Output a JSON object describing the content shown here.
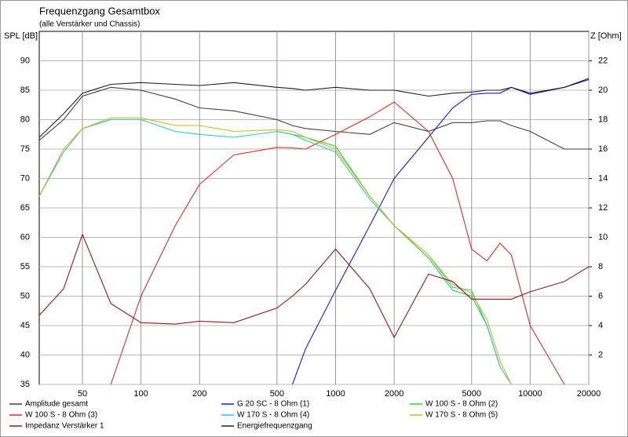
{
  "chart_data": {
    "type": "line",
    "title": "Frequenzgang Gesamtbox",
    "subtitle": "(alle Verstärker und Chassis)",
    "y_label": "SPL [dB]",
    "y2_label": "Z [Ohm]",
    "log_x": true,
    "grid": true,
    "legend": "bottom",
    "x": [
      30,
      40,
      50,
      70,
      100,
      150,
      200,
      300,
      500,
      600,
      700,
      1000,
      1500,
      2000,
      3000,
      4000,
      5000,
      6000,
      7000,
      8000,
      10000,
      15000,
      20000
    ],
    "xlim": [
      30,
      20000
    ],
    "xticks": [
      50,
      100,
      200,
      500,
      1000,
      2000,
      5000,
      10000,
      20000
    ],
    "ylim": [
      35,
      95
    ],
    "yticks": [
      35,
      40,
      45,
      50,
      55,
      60,
      65,
      70,
      75,
      80,
      85,
      90
    ],
    "y2lim": [
      0,
      24
    ],
    "y2ticks": [
      2,
      4,
      6,
      8,
      10,
      12,
      14,
      16,
      18,
      20,
      22
    ],
    "series": [
      {
        "name": "Amplitude gesamt",
        "color": "#404040",
        "values": [
          76.5,
          80,
          84,
          85.5,
          85,
          83.5,
          82,
          81.5,
          80,
          79,
          78.5,
          78,
          77.5,
          79.5,
          78,
          79.5,
          79.5,
          79.8,
          79.8,
          79,
          78,
          75,
          75
        ]
      },
      {
        "name": "G 20 SC - 8 Ohm (1)",
        "color": "#1a1acc",
        "values": [
          null,
          null,
          null,
          null,
          null,
          null,
          null,
          null,
          null,
          35,
          41,
          51,
          62,
          70,
          77,
          82,
          84.3,
          84.5,
          84.5,
          85.5,
          84.3,
          85.5,
          86.8
        ]
      },
      {
        "name": "W 100 S - 8 Ohm (2)",
        "color": "#33cc33",
        "values": [
          null,
          null,
          null,
          null,
          null,
          null,
          null,
          null,
          78,
          77.5,
          77,
          75.5,
          67,
          62,
          56.5,
          51,
          50,
          45,
          38,
          null,
          null,
          null,
          null
        ]
      },
      {
        "name": "W 100 S - 8 Ohm (3)",
        "color": "#d03020",
        "values": [
          null,
          null,
          null,
          35,
          50,
          62,
          69,
          74,
          75.3,
          75.2,
          75,
          77.5,
          80.5,
          83,
          78,
          70,
          58,
          56,
          59,
          57,
          45,
          35,
          null
        ]
      },
      {
        "name": "W 170 S - 8 Ohm (4)",
        "color": "#30c0d0",
        "values": [
          67,
          74.5,
          78.5,
          80,
          80,
          78,
          77.5,
          77,
          78,
          77.5,
          76.5,
          74.5,
          66.5,
          62,
          57,
          51.5,
          51,
          45,
          38,
          35,
          null,
          null,
          null
        ]
      },
      {
        "name": "W 170 S - 8 Ohm (5)",
        "color": "#c8b820",
        "values": [
          67,
          75,
          78.5,
          80.3,
          80.3,
          79,
          79,
          78,
          78.3,
          78,
          77,
          75,
          67,
          62,
          57,
          52,
          50.5,
          46,
          39,
          35,
          null,
          null,
          null
        ]
      },
      {
        "name": "Impedanz Verstärker 1",
        "color": "#8b1a1a",
        "axis": "y2",
        "values": [
          4.7,
          6.5,
          10.2,
          5.5,
          4.2,
          4.1,
          4.3,
          4.2,
          5.2,
          6,
          6.8,
          9.2,
          6.5,
          3.2,
          7.5,
          7,
          5.8,
          5.8,
          5.8,
          5.8,
          6.3,
          7,
          8
        ]
      },
      {
        "name": "Energiefrequenzgang",
        "color": "#202020",
        "values": [
          77,
          81,
          84.5,
          86,
          86.3,
          86,
          85.8,
          86.3,
          85.5,
          85.3,
          85,
          85.5,
          85,
          85,
          84,
          84.5,
          84.7,
          85,
          85,
          85.5,
          84.5,
          85.5,
          87
        ]
      }
    ]
  }
}
